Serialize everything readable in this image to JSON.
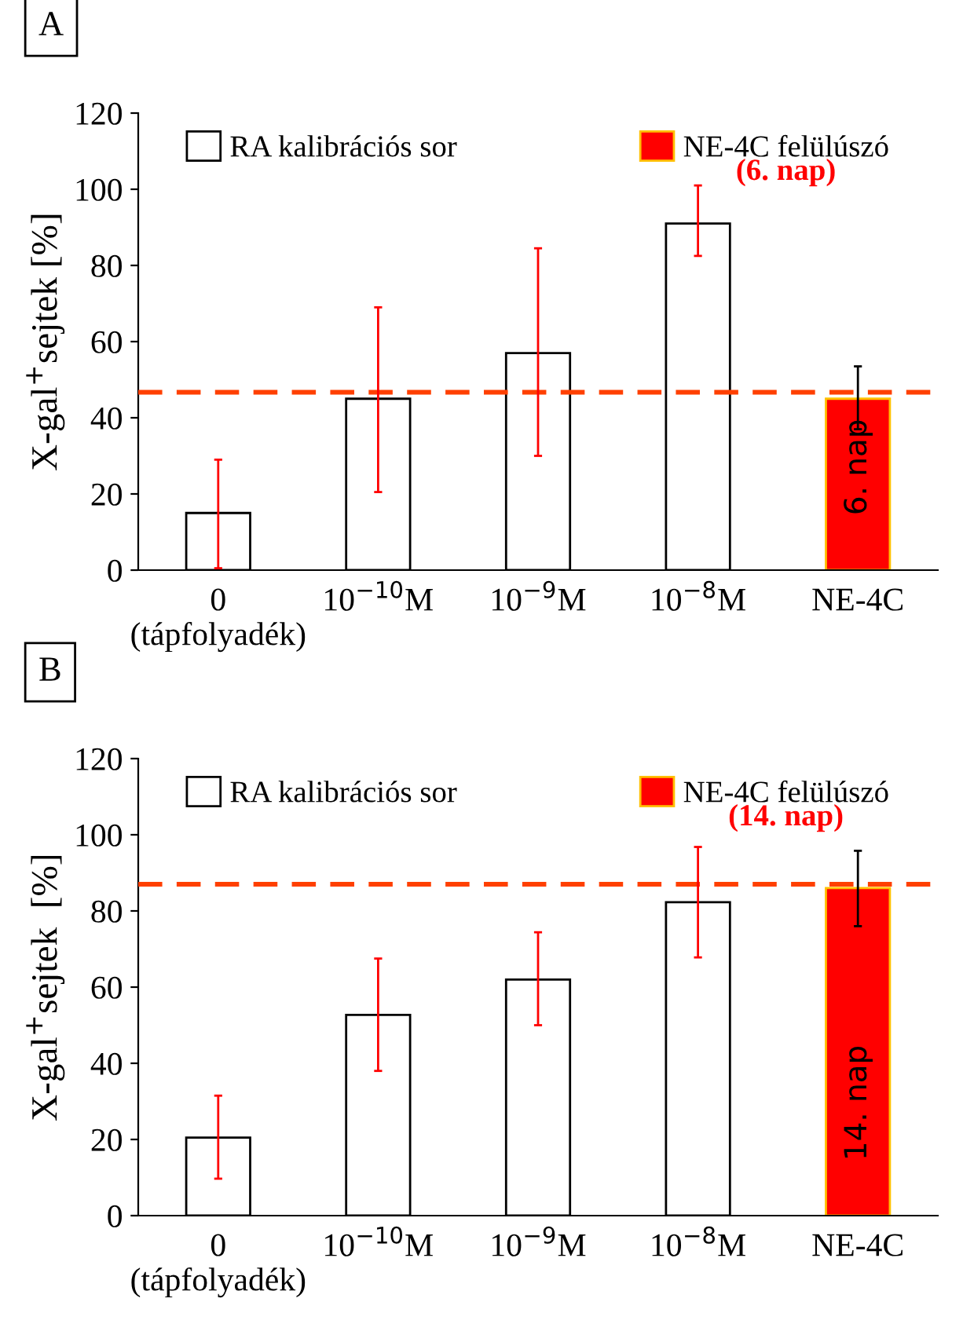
{
  "chart_data": [
    {
      "type": "bar",
      "title": "A",
      "ylabel": "X-gal$^{+}$sejtek [%]",
      "categories": [
        "0\n(tápfolyadék)",
        "10$^{−10}$M",
        "10$^{−9}$M",
        "10$^{−8}$M",
        "NE-4C"
      ],
      "series": [
        {
          "name": "RA kalibrációs sor",
          "color": "#ffffff",
          "values": [
            15,
            45,
            57,
            91,
            null
          ],
          "errors": [
            [
              0.5,
              29
            ],
            [
              20.5,
              69
            ],
            [
              30,
              84.5
            ],
            [
              82.5,
              101
            ],
            null
          ]
        },
        {
          "name": "NE-4C felülúszó",
          "color": "#ff0000",
          "values": [
            null,
            null,
            null,
            null,
            45
          ],
          "errors": [
            null,
            null,
            null,
            null,
            [
              37,
              53.5
            ]
          ]
        }
      ],
      "ylim": [
        0,
        120
      ],
      "yticks": [
        0,
        20,
        40,
        60,
        80,
        100,
        120
      ],
      "ref_lines": [
        {
          "axis": "y",
          "value": 46.7,
          "color": "#ff4000",
          "line_style": "dashed"
        }
      ],
      "annotations": [
        "(6. nap)",
        "6. nap"
      ],
      "legend": "top",
      "grid": false
    },
    {
      "type": "bar",
      "title": "B",
      "ylabel": "X-gal$^{+}$sejtek  [%]",
      "categories": [
        "0\n(tápfolyadék)",
        "10$^{−10}$M",
        "10$^{−9}$M",
        "10$^{−8}$M",
        "NE-4C"
      ],
      "series": [
        {
          "name": "RA kalibrációs sor",
          "color": "#ffffff",
          "values": [
            20.5,
            52.7,
            62,
            82.3,
            null
          ],
          "errors": [
            [
              9.7,
              31.5
            ],
            [
              38,
              67.5
            ],
            [
              50,
              74.4
            ],
            [
              67.8,
              96.8
            ],
            null
          ]
        },
        {
          "name": "NE-4C felülúszó",
          "color": "#ff0000",
          "values": [
            null,
            null,
            null,
            null,
            86
          ],
          "errors": [
            null,
            null,
            null,
            null,
            [
              76,
              95.8
            ]
          ]
        }
      ],
      "ylim": [
        0,
        120
      ],
      "yticks": [
        0,
        20,
        40,
        60,
        80,
        100,
        120
      ],
      "ref_lines": [
        {
          "axis": "y",
          "value": 87,
          "color": "#ff4000",
          "line_style": "dashed"
        }
      ],
      "annotations": [
        "(14. nap)",
        "14. nap"
      ],
      "legend": "top",
      "grid": false
    }
  ]
}
